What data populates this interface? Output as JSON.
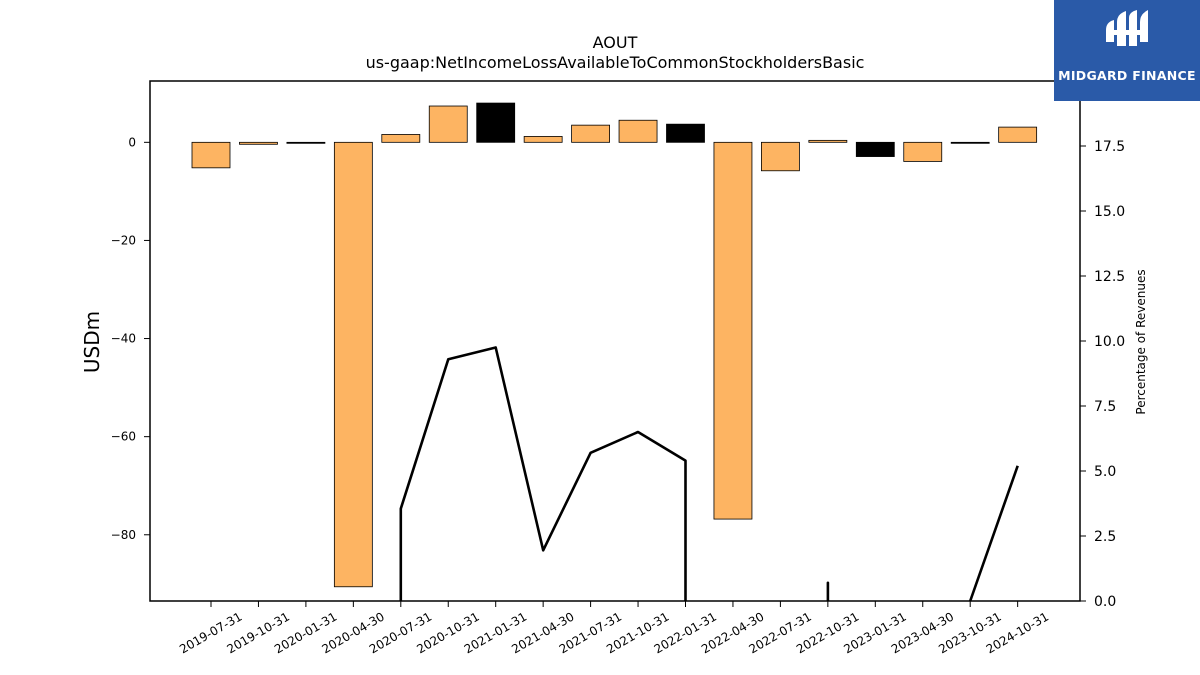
{
  "chart_data": {
    "type": "bar",
    "title": "AOUT",
    "subtitle": "us-gaap:NetIncomeLossAvailableToCommonStockholdersBasic",
    "ylabel": "USDm",
    "y2label": "Percentage of Revenues",
    "ylim": [
      -93.5,
      12.5
    ],
    "y2lim": [
      0.0,
      20.0
    ],
    "yticks": [
      0,
      -20,
      -40,
      -60,
      -80
    ],
    "y2ticks": [
      0.0,
      2.5,
      5.0,
      7.5,
      10.0,
      12.5,
      15.0,
      17.5,
      20.0
    ],
    "categories": [
      "2019-07-31",
      "2019-10-31",
      "2020-01-31",
      "2020-04-30",
      "2020-07-31",
      "2020-10-31",
      "2021-01-31",
      "2021-04-30",
      "2021-07-31",
      "2021-10-31",
      "2022-01-31",
      "2022-04-30",
      "2022-07-31",
      "2022-10-31",
      "2023-01-31",
      "2023-04-30",
      "2023-10-31",
      "2024-10-31"
    ],
    "series": [
      {
        "values": [
          -5.2,
          -0.4,
          -0.2,
          -90.6,
          1.6,
          7.4,
          8.0,
          1.2,
          3.5,
          4.5,
          3.7,
          -76.8,
          -5.8,
          0.4,
          -2.9,
          -3.9,
          -0.1,
          3.1
        ],
        "colors": [
          "#fdb462",
          "#fdb462",
          "#000000",
          "#fdb462",
          "#fdb462",
          "#fdb462",
          "#000000",
          "#fdb462",
          "#fdb462",
          "#fdb462",
          "#000000",
          "#fdb462",
          "#fdb462",
          "#fdb462",
          "#000000",
          "#fdb462",
          "#000000",
          "#fdb462"
        ]
      },
      {
        "axis": "right",
        "type": "line",
        "points": [
          {
            "x": "2020-07-31",
            "y": 0.0
          },
          {
            "x": "2020-07-31",
            "y": 3.55
          },
          {
            "x": "2020-10-31",
            "y": 9.3
          },
          {
            "x": "2021-01-31",
            "y": 9.75
          },
          {
            "x": "2021-04-30",
            "y": 1.95
          },
          {
            "x": "2021-07-31",
            "y": 5.7
          },
          {
            "x": "2021-10-31",
            "y": 6.5
          },
          {
            "x": "2022-01-31",
            "y": 5.4
          },
          {
            "x": "2022-01-31",
            "y": 0.0
          },
          {
            "break": true
          },
          {
            "x": "2022-10-31",
            "y": 0.0
          },
          {
            "x": "2022-10-31",
            "y": 0.7
          },
          {
            "x": "2022-10-31",
            "y": 0.0
          },
          {
            "break": true
          },
          {
            "x": "2023-10-31",
            "y": 0.0
          },
          {
            "x": "2024-10-31",
            "y": 5.2
          }
        ],
        "color": "#000000"
      }
    ],
    "colors": {
      "positive_bar": "#fdb462",
      "highlight_bar": "#000000",
      "line": "#000000"
    }
  },
  "logo": {
    "text": "MIDGARD FINANCE",
    "background": "#2a5aa8"
  }
}
